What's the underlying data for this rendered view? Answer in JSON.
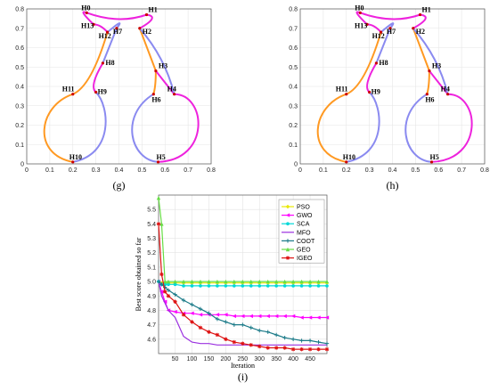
{
  "chart_data": [
    {
      "type": "line",
      "caption": "(g)",
      "xlim": [
        0,
        0.8
      ],
      "ylim": [
        0,
        0.8
      ],
      "xticks": [
        "0",
        "0.1",
        "0.2",
        "0.3",
        "0.4",
        "0.5",
        "0.6",
        "0.7",
        "0.8"
      ],
      "yticks": [
        "0",
        "0.1",
        "0.2",
        "0.3",
        "0.4",
        "0.5",
        "0.6",
        "0.7",
        "0.8"
      ],
      "grid": true,
      "points": [
        {
          "name": "H0",
          "x": 0.26,
          "y": 0.78
        },
        {
          "name": "H1",
          "x": 0.52,
          "y": 0.77
        },
        {
          "name": "H2",
          "x": 0.49,
          "y": 0.7
        },
        {
          "name": "H3",
          "x": 0.56,
          "y": 0.48
        },
        {
          "name": "H4",
          "x": 0.64,
          "y": 0.36
        },
        {
          "name": "H5",
          "x": 0.57,
          "y": 0.01
        },
        {
          "name": "H6",
          "x": 0.55,
          "y": 0.36
        },
        {
          "name": "H7",
          "x": 0.39,
          "y": 0.7
        },
        {
          "name": "H8",
          "x": 0.33,
          "y": 0.52
        },
        {
          "name": "H9",
          "x": 0.3,
          "y": 0.37
        },
        {
          "name": "H10",
          "x": 0.2,
          "y": 0.01
        },
        {
          "name": "H11",
          "x": 0.2,
          "y": 0.36
        },
        {
          "name": "H12",
          "x": 0.35,
          "y": 0.68
        },
        {
          "name": "H13",
          "x": 0.29,
          "y": 0.72
        }
      ]
    },
    {
      "type": "line",
      "caption": "(h)",
      "xlim": [
        0,
        0.8
      ],
      "ylim": [
        0,
        0.8
      ],
      "xticks": [
        "0",
        "0.1",
        "0.2",
        "0.3",
        "0.4",
        "0.5",
        "0.6",
        "0.7",
        "0.8"
      ],
      "yticks": [
        "0",
        "0.1",
        "0.2",
        "0.3",
        "0.4",
        "0.5",
        "0.6",
        "0.7",
        "0.8"
      ],
      "grid": true,
      "points": [
        {
          "name": "H0",
          "x": 0.26,
          "y": 0.78
        },
        {
          "name": "H1",
          "x": 0.52,
          "y": 0.77
        },
        {
          "name": "H2",
          "x": 0.49,
          "y": 0.7
        },
        {
          "name": "H3",
          "x": 0.56,
          "y": 0.48
        },
        {
          "name": "H4",
          "x": 0.64,
          "y": 0.36
        },
        {
          "name": "H5",
          "x": 0.57,
          "y": 0.01
        },
        {
          "name": "H6",
          "x": 0.55,
          "y": 0.36
        },
        {
          "name": "H7",
          "x": 0.39,
          "y": 0.7
        },
        {
          "name": "H8",
          "x": 0.33,
          "y": 0.52
        },
        {
          "name": "H9",
          "x": 0.3,
          "y": 0.37
        },
        {
          "name": "H10",
          "x": 0.2,
          "y": 0.01
        },
        {
          "name": "H11",
          "x": 0.2,
          "y": 0.36
        },
        {
          "name": "H12",
          "x": 0.35,
          "y": 0.68
        },
        {
          "name": "H13",
          "x": 0.29,
          "y": 0.72
        }
      ]
    },
    {
      "type": "line",
      "caption": "(i)",
      "xlabel": "Iteration",
      "ylabel": "Best score obtained so far",
      "xlim": [
        1,
        500
      ],
      "ylim": [
        4.5,
        5.6
      ],
      "xticks": [
        50,
        100,
        150,
        200,
        250,
        300,
        350,
        400,
        450
      ],
      "yticks": [
        4.6,
        4.7,
        4.8,
        4.9,
        5.0,
        5.1,
        5.2,
        5.3,
        5.4,
        5.5
      ],
      "grid": true,
      "legend_position": "top-right",
      "x": [
        1,
        10,
        20,
        30,
        50,
        75,
        100,
        125,
        150,
        175,
        200,
        225,
        250,
        275,
        300,
        325,
        350,
        375,
        400,
        425,
        450,
        475,
        500
      ],
      "series": [
        {
          "name": "PSO",
          "color": "#e8e800",
          "marker": "diamond",
          "values": [
            5.0,
            4.99,
            4.99,
            4.99,
            4.99,
            4.99,
            4.99,
            4.99,
            4.99,
            4.99,
            4.99,
            4.99,
            4.99,
            4.99,
            4.99,
            4.99,
            4.99,
            4.99,
            4.99,
            4.99,
            4.99,
            4.99,
            4.99
          ]
        },
        {
          "name": "GWO",
          "color": "#ff00ff",
          "marker": "triangle-left",
          "values": [
            5.0,
            4.93,
            4.86,
            4.8,
            4.79,
            4.78,
            4.78,
            4.77,
            4.77,
            4.77,
            4.77,
            4.76,
            4.76,
            4.76,
            4.76,
            4.76,
            4.76,
            4.76,
            4.76,
            4.75,
            4.75,
            4.75,
            4.75
          ]
        },
        {
          "name": "SCA",
          "color": "#00d8d8",
          "marker": "circle",
          "values": [
            5.0,
            4.98,
            4.98,
            4.98,
            4.98,
            4.97,
            4.97,
            4.97,
            4.97,
            4.97,
            4.97,
            4.97,
            4.97,
            4.97,
            4.97,
            4.97,
            4.97,
            4.97,
            4.97,
            4.97,
            4.97,
            4.97,
            4.97
          ]
        },
        {
          "name": "MFO",
          "color": "#9b30e0",
          "marker": "none",
          "values": [
            5.0,
            4.9,
            4.85,
            4.8,
            4.75,
            4.62,
            4.58,
            4.57,
            4.57,
            4.56,
            4.56,
            4.56,
            4.56,
            4.56,
            4.56,
            4.56,
            4.56,
            4.56,
            4.56,
            4.56,
            4.56,
            4.56,
            4.56
          ]
        },
        {
          "name": "COOT",
          "color": "#1b7a88",
          "marker": "plus",
          "values": [
            5.0,
            4.98,
            4.96,
            4.94,
            4.91,
            4.87,
            4.84,
            4.81,
            4.78,
            4.74,
            4.72,
            4.7,
            4.7,
            4.68,
            4.66,
            4.65,
            4.63,
            4.61,
            4.6,
            4.59,
            4.59,
            4.58,
            4.57
          ]
        },
        {
          "name": "GEO",
          "color": "#66dd44",
          "marker": "triangle-up",
          "values": [
            5.58,
            5.4,
            5.0,
            5.0,
            5.0,
            5.0,
            5.0,
            5.0,
            5.0,
            5.0,
            5.0,
            5.0,
            5.0,
            5.0,
            5.0,
            5.0,
            5.0,
            5.0,
            5.0,
            5.0,
            5.0,
            5.0,
            5.0
          ]
        },
        {
          "name": "IGEO",
          "color": "#dd1111",
          "marker": "star",
          "values": [
            5.4,
            5.05,
            4.93,
            4.9,
            4.86,
            4.77,
            4.72,
            4.68,
            4.65,
            4.63,
            4.6,
            4.58,
            4.57,
            4.56,
            4.55,
            4.54,
            4.54,
            4.54,
            4.53,
            4.53,
            4.53,
            4.53,
            4.53
          ]
        }
      ]
    }
  ]
}
